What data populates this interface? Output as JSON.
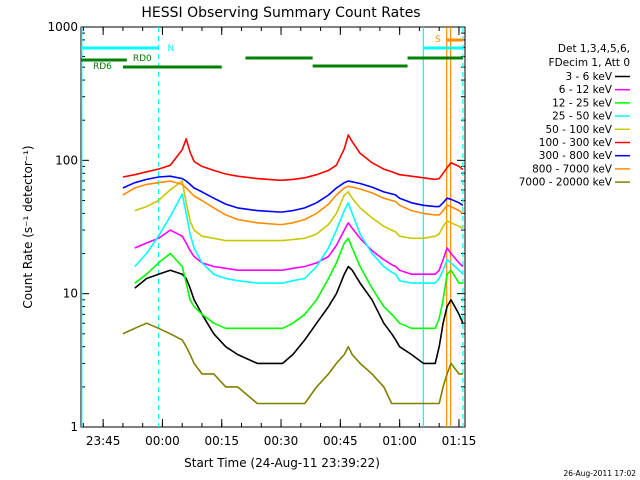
{
  "chart_data": {
    "type": "line",
    "title": "HESSI Observing Summary Count Rates",
    "xlabel": "Start Time (24-Aug-11 23:39:22)",
    "ylabel": "Count Rate (s⁻¹ detector⁻¹)",
    "y_scale": "log",
    "ylim": [
      1,
      1000
    ],
    "xlim": [
      "23:39:22",
      "01:16:30"
    ],
    "x_unit": "minutes after 23:39:22",
    "x_ticks": [
      {
        "label": "23:45",
        "minute": 5.6
      },
      {
        "label": "00:00",
        "minute": 20.6
      },
      {
        "label": "00:15",
        "minute": 35.6
      },
      {
        "label": "00:30",
        "minute": 50.6
      },
      {
        "label": "00:45",
        "minute": 65.6
      },
      {
        "label": "01:00",
        "minute": 80.6
      },
      {
        "label": "01:15",
        "minute": 95.6
      }
    ],
    "y_ticks": [
      {
        "label": "1",
        "value": 1
      },
      {
        "label": "10",
        "value": 10
      },
      {
        "label": "100",
        "value": 100
      },
      {
        "label": "1000",
        "value": 1000
      }
    ],
    "legend_header": [
      "Det 1,3,4,5,6,",
      "FDecim 1, Att 0"
    ],
    "legend_placement": "right",
    "timestamp": "26-Aug-2011 17:02",
    "x": [
      10.6,
      13.6,
      16.6,
      19.6,
      22.6,
      25.6,
      26.6,
      27.6,
      28.6,
      30.6,
      33.6,
      36.6,
      39.6,
      44.6,
      50.0,
      51.0,
      53.6,
      56.6,
      59.6,
      62.6,
      64.6,
      66.6,
      67.6,
      68.6,
      70.6,
      73.6,
      76.6,
      78.6,
      79.6,
      80.6,
      83.6,
      86.6,
      89.6,
      90.6,
      91.6,
      92.6,
      93.6,
      95.6,
      96.6
    ],
    "series": [
      {
        "name": "3 - 6 keV",
        "color": "#000000",
        "values": [
          null,
          11,
          13,
          14,
          15,
          14,
          13,
          11,
          9,
          7,
          5,
          4,
          3.5,
          3,
          3,
          3,
          3.5,
          4.5,
          6,
          8,
          10,
          14,
          16,
          15,
          12,
          9,
          6,
          5,
          4.5,
          4,
          3.5,
          3,
          3,
          4,
          6,
          8,
          9,
          7,
          6
        ]
      },
      {
        "name": "6 - 12 keV",
        "color": "#ff00ff",
        "values": [
          null,
          22,
          24,
          26,
          30,
          27,
          24,
          21,
          19,
          17,
          16,
          15.5,
          15,
          15,
          15,
          15,
          15.5,
          16,
          17,
          19,
          23,
          30,
          34,
          31,
          26,
          21,
          18,
          16.5,
          16,
          15,
          14,
          14,
          14,
          15,
          18,
          22,
          20,
          17,
          16
        ]
      },
      {
        "name": "12 - 25 keV",
        "color": "#00ff00",
        "values": [
          null,
          12,
          14,
          17,
          20,
          16,
          12,
          9,
          8,
          7,
          6,
          5.5,
          5.5,
          5.5,
          5.5,
          5.5,
          6,
          7,
          9,
          13,
          17,
          24,
          26,
          22,
          16,
          11,
          8,
          7,
          6.5,
          6,
          5.5,
          5.5,
          5.5,
          6.5,
          9,
          14,
          15,
          12,
          12
        ]
      },
      {
        "name": "25 - 50 keV",
        "color": "#00ffff",
        "values": [
          null,
          16,
          20,
          27,
          38,
          56,
          40,
          28,
          22,
          17,
          14,
          13,
          12.5,
          12,
          12,
          12,
          12.5,
          13,
          16,
          22,
          30,
          42,
          48,
          40,
          28,
          20,
          16,
          14.5,
          14,
          12.5,
          12,
          12,
          12,
          13,
          15,
          18,
          17,
          15,
          14
        ]
      },
      {
        "name": "50 - 100 keV",
        "color": "#c8c800",
        "values": [
          null,
          42,
          45,
          50,
          60,
          70,
          48,
          35,
          30,
          27,
          26,
          25,
          25,
          25,
          25,
          25,
          25.5,
          26,
          28,
          33,
          40,
          55,
          58,
          52,
          44,
          37,
          32,
          30,
          29,
          27,
          26,
          26,
          27,
          28,
          32,
          35,
          34,
          32,
          31
        ]
      },
      {
        "name": "100 - 300 keV",
        "color": "#ff0000",
        "values": [
          75,
          78,
          82,
          86,
          92,
          120,
          145,
          115,
          98,
          90,
          84,
          79,
          76,
          73,
          71,
          71,
          72,
          74,
          78,
          84,
          92,
          122,
          155,
          138,
          113,
          96,
          86,
          82,
          80,
          78,
          76,
          74,
          72,
          73,
          80,
          88,
          96,
          90,
          85
        ]
      },
      {
        "name": "300 - 800 keV",
        "color": "#0000ff",
        "values": [
          62,
          68,
          72,
          75,
          76,
          73,
          70,
          66,
          62,
          58,
          52,
          47,
          44,
          42,
          41,
          41,
          42,
          44,
          48,
          55,
          62,
          68,
          70,
          69,
          67,
          63,
          58,
          56,
          55,
          52,
          48,
          46,
          45,
          45,
          48,
          52,
          51,
          48,
          46
        ]
      },
      {
        "name": "800 - 7000 keV",
        "color": "#ff8c00",
        "values": [
          55,
          62,
          66,
          68,
          70,
          66,
          62,
          58,
          54,
          50,
          44,
          39,
          36,
          34,
          33,
          33,
          34,
          36,
          40,
          47,
          55,
          62,
          64,
          63,
          61,
          57,
          52,
          50,
          49,
          46,
          42,
          40,
          39,
          39,
          42,
          46,
          45,
          42,
          40
        ]
      },
      {
        "name": "7000 - 20000 keV",
        "color": "#808000",
        "values": [
          5,
          5.5,
          6,
          5.5,
          5,
          4.5,
          4,
          3.5,
          3,
          2.5,
          2.5,
          2,
          2,
          1.5,
          1.5,
          1.5,
          1.5,
          1.5,
          2,
          2.5,
          3,
          3.5,
          4,
          3.5,
          3,
          2.5,
          2,
          1.5,
          1.5,
          1.5,
          1.5,
          1.5,
          1.5,
          1.5,
          2,
          2.5,
          3,
          2.5,
          2.5
        ]
      }
    ],
    "attenuator_intervals": [
      {
        "label": "N",
        "color": "#00ffff",
        "start": 0,
        "end": 19.6
      },
      {
        "label": "N",
        "color": "#00ffff",
        "start": 86.6,
        "end": 96.6
      }
    ],
    "segment_markers": [
      {
        "label": "RD0",
        "color": "#008000",
        "start": 0,
        "end": 11.6
      },
      {
        "label": "RD6",
        "color": "#008000",
        "start": 10.6,
        "end": 35.6
      }
    ],
    "s_marker": {
      "label": "S",
      "color": "#ff8c00",
      "start": 92.6,
      "end": 96.6
    },
    "vertical_lines": [
      {
        "minute": 0.2,
        "color": "#00ffff",
        "style": "solid"
      },
      {
        "minute": 19.6,
        "color": "#00ffff",
        "style": "dashed"
      },
      {
        "minute": 86.6,
        "color": "#00ffff",
        "style": "solid"
      },
      {
        "minute": 92.5,
        "color": "#ff8c00",
        "style": "solid"
      },
      {
        "minute": 93.5,
        "color": "#ff8c00",
        "style": "solid"
      },
      {
        "minute": 96.6,
        "color": "#00ffff",
        "style": "dashed"
      }
    ]
  }
}
